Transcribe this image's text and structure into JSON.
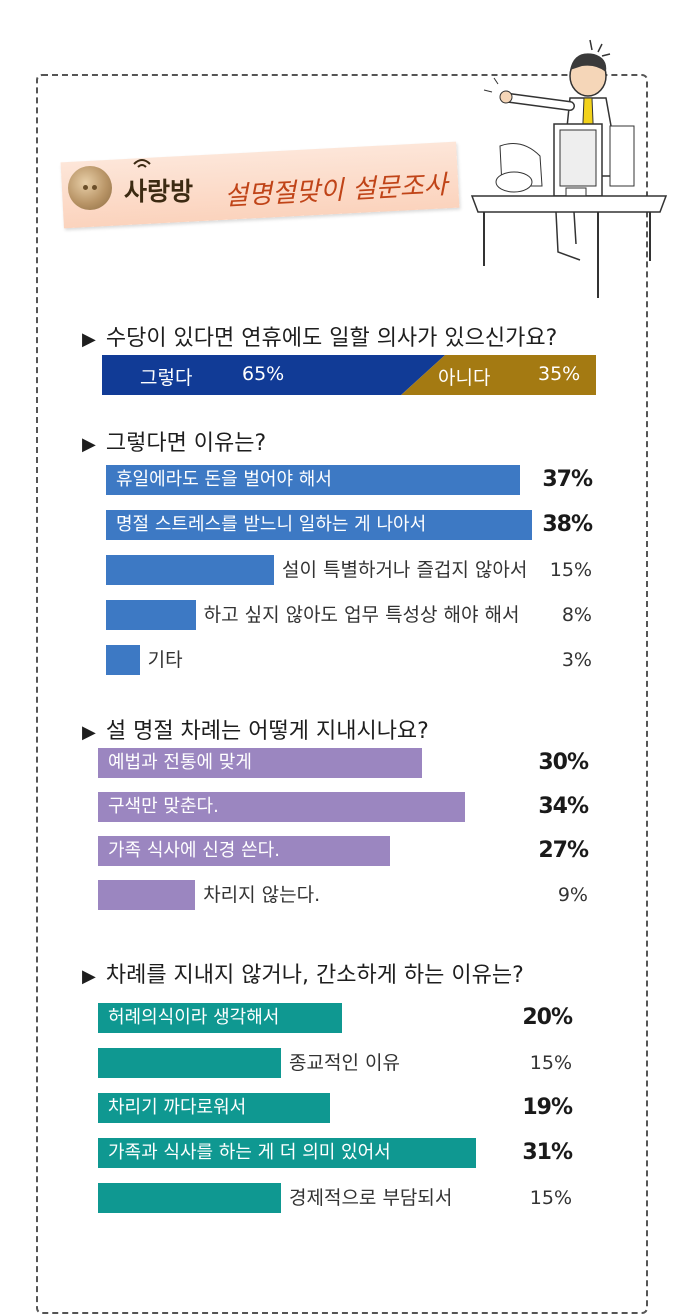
{
  "header": {
    "brand": "사랑방",
    "subtitle": "설명절맞이 설문조사",
    "icon": "button-icon"
  },
  "colors": {
    "blue_dark": "#113b96",
    "gold": "#a47a12",
    "blue": "#3d79c4",
    "purple": "#9b86c0",
    "teal": "#0f9891"
  },
  "chart_data": [
    {
      "type": "bar",
      "title": "수당이 있다면 연휴에도 일할 의사가 있으신가요?",
      "categories": [
        "그렇다",
        "아니다"
      ],
      "values": [
        65,
        35
      ],
      "value_labels": [
        "65%",
        "35%"
      ],
      "layout": "stacked-single"
    },
    {
      "type": "bar",
      "title": "그렇다면 이유는?",
      "categories": [
        "휴일에라도 돈을 벌어야 해서",
        "명절 스트레스를 받느니 일하는 게 나아서",
        "설이 특별하거나 즐겁지 않아서",
        "하고 싶지 않아도 업무 특성상 해야 해서",
        "기타"
      ],
      "values": [
        37,
        38,
        15,
        8,
        3
      ],
      "value_labels": [
        "37%",
        "38%",
        "15%",
        "8%",
        "3%"
      ]
    },
    {
      "type": "bar",
      "title": "설 명절 차례는 어떻게 지내시나요?",
      "categories": [
        "예법과 전통에 맞게",
        "구색만 맞춘다.",
        "가족 식사에 신경 쓴다.",
        "차리지 않는다."
      ],
      "values": [
        30,
        34,
        27,
        9
      ],
      "value_labels": [
        "30%",
        "34%",
        "27%",
        "9%"
      ]
    },
    {
      "type": "bar",
      "title": "차례를 지내지 않거나, 간소하게 하는 이유는?",
      "categories": [
        "허례의식이라 생각해서",
        "종교적인 이유",
        "차리기 까다로워서",
        "가족과 식사를 하는 게 더 의미 있어서",
        "경제적으로 부담되서"
      ],
      "values": [
        20,
        15,
        19,
        31,
        15
      ],
      "value_labels": [
        "20%",
        "15%",
        "19%",
        "31%",
        "15%"
      ]
    }
  ]
}
